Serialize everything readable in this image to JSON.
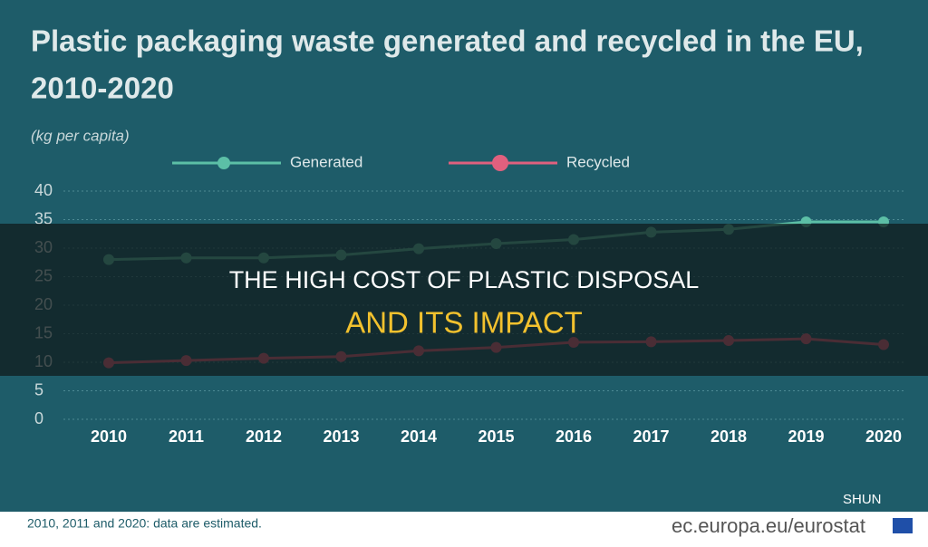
{
  "chart_data": {
    "type": "line",
    "title": [
      "Plastic packaging waste generated and recycled in the EU,",
      "2010-2020"
    ],
    "subtitle": "(kg per capita)",
    "categories": [
      "2010",
      "2011",
      "2012",
      "2013",
      "2014",
      "2015",
      "2016",
      "2017",
      "2018",
      "2019",
      "2020"
    ],
    "series": [
      {
        "name": "Generated",
        "color": "#5cbfa6",
        "values": [
          28.0,
          28.3,
          28.3,
          28.8,
          29.9,
          30.8,
          31.5,
          32.8,
          33.3,
          34.6,
          34.6
        ]
      },
      {
        "name": "Recycled",
        "color": "#e0607e",
        "values": [
          9.9,
          10.3,
          10.7,
          11.0,
          12.0,
          12.6,
          13.5,
          13.6,
          13.8,
          14.1,
          13.1
        ]
      }
    ],
    "ylim": [
      0,
      40
    ],
    "yticks": [
      0,
      5,
      10,
      15,
      20,
      25,
      30,
      35,
      40
    ],
    "grid": true,
    "footnote": "2010, 2011 and 2020: data are estimated.",
    "source": "ec.europa.eu/eurostat"
  },
  "overlay": {
    "line1": "THE HIGH COST OF PLASTIC DISPOSAL",
    "line2": "AND ITS IMPACT",
    "watermark": "SHUN"
  }
}
